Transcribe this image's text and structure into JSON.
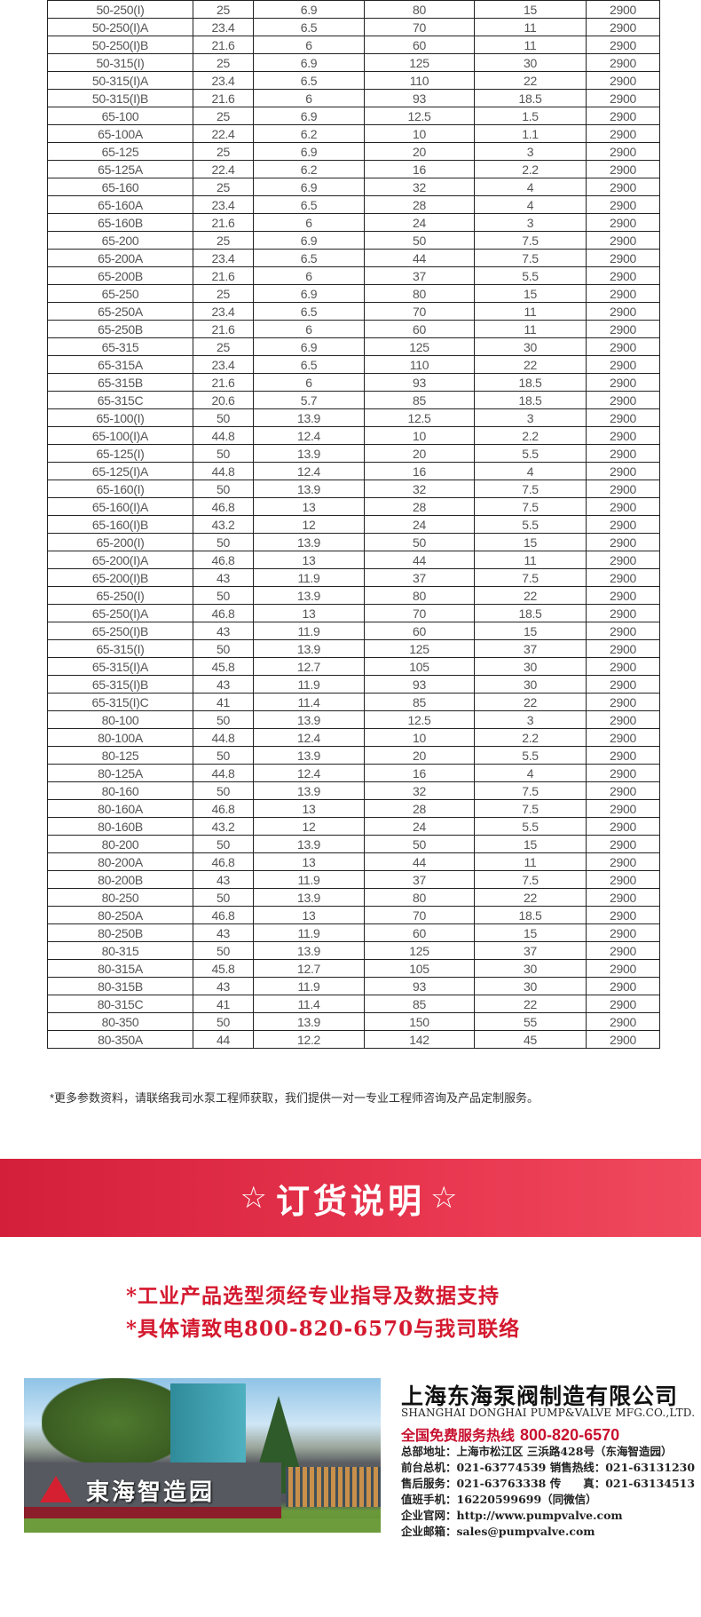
{
  "table": {
    "rows": [
      [
        "50-250(I)",
        "25",
        "6.9",
        "80",
        "15",
        "2900"
      ],
      [
        "50-250(I)A",
        "23.4",
        "6.5",
        "70",
        "11",
        "2900"
      ],
      [
        "50-250(I)B",
        "21.6",
        "6",
        "60",
        "11",
        "2900"
      ],
      [
        "50-315(I)",
        "25",
        "6.9",
        "125",
        "30",
        "2900"
      ],
      [
        "50-315(I)A",
        "23.4",
        "6.5",
        "110",
        "22",
        "2900"
      ],
      [
        "50-315(I)B",
        "21.6",
        "6",
        "93",
        "18.5",
        "2900"
      ],
      [
        "65-100",
        "25",
        "6.9",
        "12.5",
        "1.5",
        "2900"
      ],
      [
        "65-100A",
        "22.4",
        "6.2",
        "10",
        "1.1",
        "2900"
      ],
      [
        "65-125",
        "25",
        "6.9",
        "20",
        "3",
        "2900"
      ],
      [
        "65-125A",
        "22.4",
        "6.2",
        "16",
        "2.2",
        "2900"
      ],
      [
        "65-160",
        "25",
        "6.9",
        "32",
        "4",
        "2900"
      ],
      [
        "65-160A",
        "23.4",
        "6.5",
        "28",
        "4",
        "2900"
      ],
      [
        "65-160B",
        "21.6",
        "6",
        "24",
        "3",
        "2900"
      ],
      [
        "65-200",
        "25",
        "6.9",
        "50",
        "7.5",
        "2900"
      ],
      [
        "65-200A",
        "23.4",
        "6.5",
        "44",
        "7.5",
        "2900"
      ],
      [
        "65-200B",
        "21.6",
        "6",
        "37",
        "5.5",
        "2900"
      ],
      [
        "65-250",
        "25",
        "6.9",
        "80",
        "15",
        "2900"
      ],
      [
        "65-250A",
        "23.4",
        "6.5",
        "70",
        "11",
        "2900"
      ],
      [
        "65-250B",
        "21.6",
        "6",
        "60",
        "11",
        "2900"
      ],
      [
        "65-315",
        "25",
        "6.9",
        "125",
        "30",
        "2900"
      ],
      [
        "65-315A",
        "23.4",
        "6.5",
        "110",
        "22",
        "2900"
      ],
      [
        "65-315B",
        "21.6",
        "6",
        "93",
        "18.5",
        "2900"
      ],
      [
        "65-315C",
        "20.6",
        "5.7",
        "85",
        "18.5",
        "2900"
      ],
      [
        "65-100(I)",
        "50",
        "13.9",
        "12.5",
        "3",
        "2900"
      ],
      [
        "65-100(I)A",
        "44.8",
        "12.4",
        "10",
        "2.2",
        "2900"
      ],
      [
        "65-125(I)",
        "50",
        "13.9",
        "20",
        "5.5",
        "2900"
      ],
      [
        "65-125(I)A",
        "44.8",
        "12.4",
        "16",
        "4",
        "2900"
      ],
      [
        "65-160(I)",
        "50",
        "13.9",
        "32",
        "7.5",
        "2900"
      ],
      [
        "65-160(I)A",
        "46.8",
        "13",
        "28",
        "7.5",
        "2900"
      ],
      [
        "65-160(I)B",
        "43.2",
        "12",
        "24",
        "5.5",
        "2900"
      ],
      [
        "65-200(I)",
        "50",
        "13.9",
        "50",
        "15",
        "2900"
      ],
      [
        "65-200(I)A",
        "46.8",
        "13",
        "44",
        "11",
        "2900"
      ],
      [
        "65-200(I)B",
        "43",
        "11.9",
        "37",
        "7.5",
        "2900"
      ],
      [
        "65-250(I)",
        "50",
        "13.9",
        "80",
        "22",
        "2900"
      ],
      [
        "65-250(I)A",
        "46.8",
        "13",
        "70",
        "18.5",
        "2900"
      ],
      [
        "65-250(I)B",
        "43",
        "11.9",
        "60",
        "15",
        "2900"
      ],
      [
        "65-315(I)",
        "50",
        "13.9",
        "125",
        "37",
        "2900"
      ],
      [
        "65-315(I)A",
        "45.8",
        "12.7",
        "105",
        "30",
        "2900"
      ],
      [
        "65-315(I)B",
        "43",
        "11.9",
        "93",
        "30",
        "2900"
      ],
      [
        "65-315(I)C",
        "41",
        "11.4",
        "85",
        "22",
        "2900"
      ],
      [
        "80-100",
        "50",
        "13.9",
        "12.5",
        "3",
        "2900"
      ],
      [
        "80-100A",
        "44.8",
        "12.4",
        "10",
        "2.2",
        "2900"
      ],
      [
        "80-125",
        "50",
        "13.9",
        "20",
        "5.5",
        "2900"
      ],
      [
        "80-125A",
        "44.8",
        "12.4",
        "16",
        "4",
        "2900"
      ],
      [
        "80-160",
        "50",
        "13.9",
        "32",
        "7.5",
        "2900"
      ],
      [
        "80-160A",
        "46.8",
        "13",
        "28",
        "7.5",
        "2900"
      ],
      [
        "80-160B",
        "43.2",
        "12",
        "24",
        "5.5",
        "2900"
      ],
      [
        "80-200",
        "50",
        "13.9",
        "50",
        "15",
        "2900"
      ],
      [
        "80-200A",
        "46.8",
        "13",
        "44",
        "11",
        "2900"
      ],
      [
        "80-200B",
        "43",
        "11.9",
        "37",
        "7.5",
        "2900"
      ],
      [
        "80-250",
        "50",
        "13.9",
        "80",
        "22",
        "2900"
      ],
      [
        "80-250A",
        "46.8",
        "13",
        "70",
        "18.5",
        "2900"
      ],
      [
        "80-250B",
        "43",
        "11.9",
        "60",
        "15",
        "2900"
      ],
      [
        "80-315",
        "50",
        "13.9",
        "125",
        "37",
        "2900"
      ],
      [
        "80-315A",
        "45.8",
        "12.7",
        "105",
        "30",
        "2900"
      ],
      [
        "80-315B",
        "43",
        "11.9",
        "93",
        "30",
        "2900"
      ],
      [
        "80-315C",
        "41",
        "11.4",
        "85",
        "22",
        "2900"
      ],
      [
        "80-350",
        "50",
        "13.9",
        "150",
        "55",
        "2900"
      ],
      [
        "80-350A",
        "44",
        "12.2",
        "142",
        "45",
        "2900"
      ]
    ]
  },
  "note": "*更多参数资料，请联络我司水泵工程师获取，我们提供一对一专业工程师咨询及产品定制服务。",
  "banner": {
    "star": "☆",
    "title": "订货说明",
    "color": "#d41f3a"
  },
  "order": [
    "*工业产品选型须经专业指导及数据支持",
    "*具体请致电800-820-6570与我司联络"
  ],
  "photo": {
    "sign": "東海智造园"
  },
  "company": {
    "name": "上海东海泵阀制造有限公司",
    "english": "SHANGHAI DONGHAI PUMP&VALVE MFG.CO.,LTD.",
    "hotline_label": "全国免费服务热线",
    "hotline": "800-820-6570",
    "lines": [
      "总部地址：上海市松江区 三浜路428号（东海智造园）",
      "前台总机：021-63774539  销售热线：021-63131230",
      "售后服务：021-63763338  传　　真：021-63134513",
      "值班手机：16220599699（同微信）",
      "企业官网：http://www.pumpvalve.com",
      "企业邮箱：sales@pumpvalve.com"
    ]
  }
}
